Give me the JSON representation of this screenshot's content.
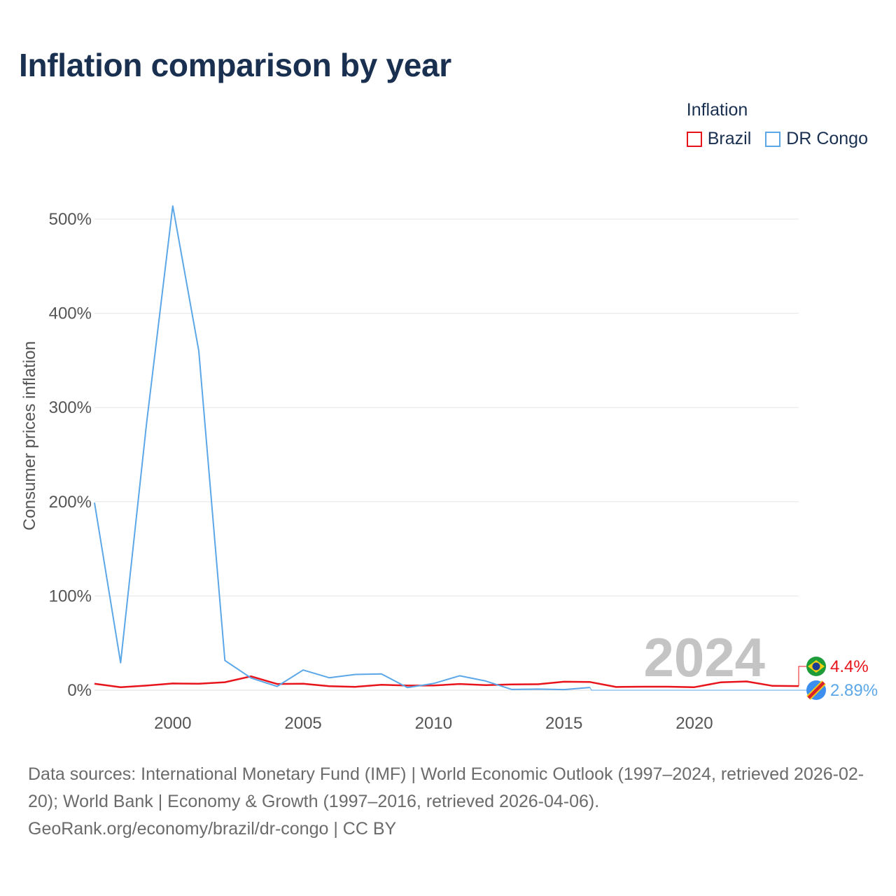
{
  "title": "Inflation comparison by year",
  "legend": {
    "title": "Inflation",
    "items": [
      {
        "label": "Brazil",
        "color": "#e8141c"
      },
      {
        "label": "DR Congo",
        "color": "#5ba7e8"
      }
    ]
  },
  "chart_data": {
    "type": "line",
    "title": "Inflation comparison by year",
    "xlabel": "",
    "ylabel": "Consumer prices inflation",
    "xlim": [
      1997,
      2024
    ],
    "ylim": [
      0,
      500
    ],
    "xticks": [
      2000,
      2005,
      2010,
      2015,
      2020
    ],
    "yticks": [
      0,
      100,
      200,
      300,
      400,
      500
    ],
    "ytick_labels": [
      "0%",
      "100%",
      "200%",
      "300%",
      "400%",
      "500%"
    ],
    "grid": true,
    "legend_position": "top-right",
    "highlight_year": "2024",
    "series": [
      {
        "name": "Brazil",
        "color": "#e8141c",
        "x": [
          1997,
          1998,
          1999,
          2000,
          2001,
          2002,
          2003,
          2004,
          2005,
          2006,
          2007,
          2008,
          2009,
          2010,
          2011,
          2012,
          2013,
          2014,
          2015,
          2016,
          2017,
          2018,
          2019,
          2020,
          2021,
          2022,
          2023,
          2024
        ],
        "values": [
          6.9,
          3.2,
          4.9,
          7.1,
          6.8,
          8.5,
          14.7,
          6.6,
          6.9,
          4.2,
          3.6,
          5.7,
          4.9,
          5.0,
          6.6,
          5.4,
          6.2,
          6.3,
          9.0,
          8.7,
          3.4,
          3.7,
          3.7,
          3.2,
          8.3,
          9.3,
          4.6,
          4.4
        ],
        "end_label": "4.4%"
      },
      {
        "name": "DR Congo",
        "color": "#5ba7e8",
        "x": [
          1997,
          1998,
          1999,
          2000,
          2001,
          2002,
          2003,
          2004,
          2005,
          2006,
          2007,
          2008,
          2009,
          2010,
          2011,
          2012,
          2013,
          2014,
          2015,
          2016
        ],
        "values": [
          199,
          29.1,
          284,
          514,
          360,
          31.5,
          12.9,
          4.0,
          21.4,
          13.2,
          16.7,
          17.3,
          2.8,
          7.1,
          15.3,
          9.7,
          0.8,
          1.2,
          0.7,
          2.9
        ],
        "end_label": "2.89%"
      }
    ]
  },
  "footer": {
    "line1": "Data sources: International Monetary Fund (IMF) | World Economic Outlook (1997–2024, retrieved 2026-02-20); World Bank | Economy & Growth (1997–2016, retrieved 2026-04-06).",
    "line2": "GeoRank.org/economy/brazil/dr-congo | CC BY"
  }
}
